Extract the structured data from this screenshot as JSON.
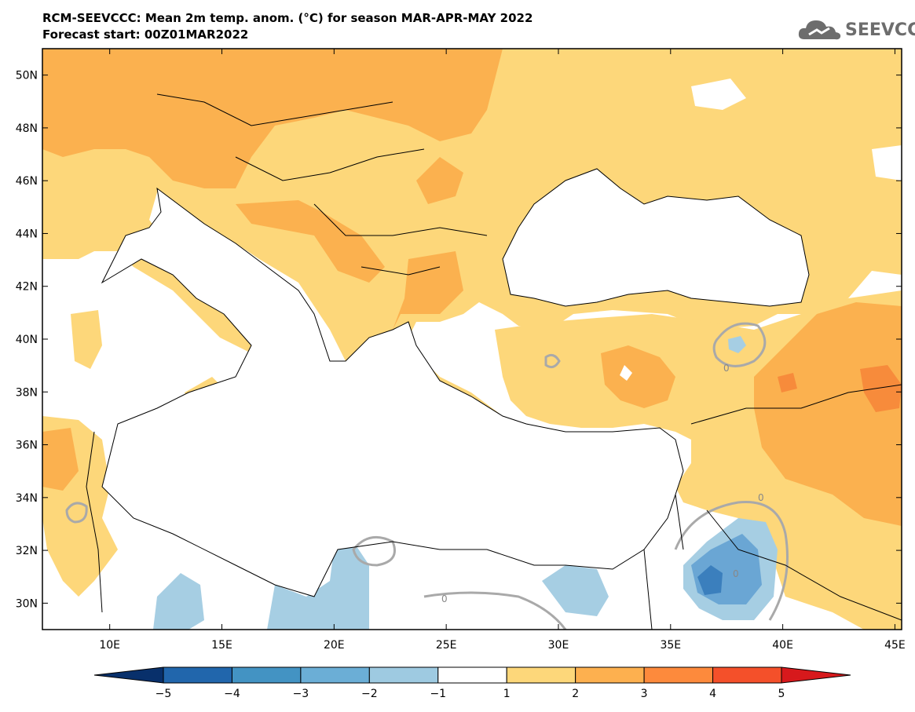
{
  "header": {
    "title": "RCM-SEEVCCC: Mean 2m temp. anom. (°C) for season MAR-APR-MAY 2022",
    "subtitle": "Forecast start: 00Z01MAR2022",
    "logo_text": "SEEVCCC"
  },
  "map": {
    "lat_ticks": [
      {
        "value": 50,
        "label": "50N"
      },
      {
        "value": 48,
        "label": "48N"
      },
      {
        "value": 46,
        "label": "46N"
      },
      {
        "value": 44,
        "label": "44N"
      },
      {
        "value": 42,
        "label": "42N"
      },
      {
        "value": 40,
        "label": "40N"
      },
      {
        "value": 38,
        "label": "38N"
      },
      {
        "value": 36,
        "label": "36N"
      },
      {
        "value": 34,
        "label": "34N"
      },
      {
        "value": 32,
        "label": "32N"
      },
      {
        "value": 30,
        "label": "30N"
      }
    ],
    "lon_ticks": [
      {
        "value": 10,
        "label": "10E"
      },
      {
        "value": 15,
        "label": "15E"
      },
      {
        "value": 20,
        "label": "20E"
      },
      {
        "value": 25,
        "label": "25E"
      },
      {
        "value": 30,
        "label": "30E"
      },
      {
        "value": 35,
        "label": "35E"
      },
      {
        "value": 40,
        "label": "40E"
      },
      {
        "value": 45,
        "label": "45E"
      }
    ],
    "contour_labels": [
      "0",
      "0",
      "0",
      "0"
    ]
  },
  "colorbar": {
    "levels": [
      "−5",
      "−4",
      "−3",
      "−2",
      "−1",
      "1",
      "2",
      "3",
      "4",
      "5"
    ],
    "colors": [
      "#08306b",
      "#2166ac",
      "#4393c3",
      "#6baed6",
      "#9ecae1",
      "#ffffff",
      "#fdd77a",
      "#fdb04f",
      "#fd8a3c",
      "#f4502a",
      "#d7191c"
    ]
  },
  "palette": {
    "anom_1_2": "#fdd77a",
    "anom_2_3": "#fbb14f",
    "anom_3_4": "#f78b3b",
    "anom_4_5": "#f4502a",
    "anom_m1_m2": "#a6cee3",
    "anom_m2_m3": "#6aa6d4",
    "anom_m3_m4": "#3b7fbd",
    "zero_contour": "#a9a9a9",
    "border": "#000000"
  }
}
